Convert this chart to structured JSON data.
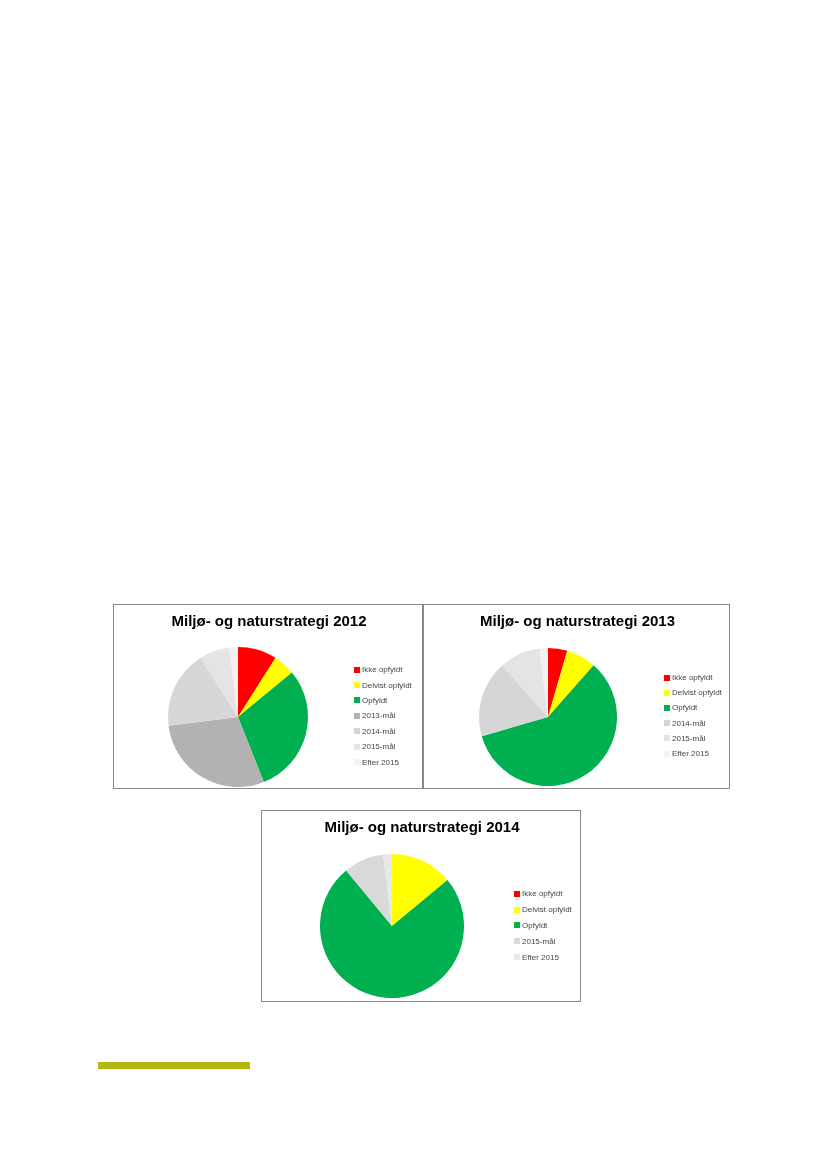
{
  "chart_data": [
    {
      "type": "pie",
      "title": "Miljø- og naturstrategi 2012",
      "categories": [
        "Ikke opfyldt",
        "Delvist opfyldt",
        "Opfyldt",
        "2013-mål",
        "2014-mål",
        "2015-mål",
        "Efter 2015"
      ],
      "values": [
        9,
        5,
        30,
        29,
        18,
        7,
        2
      ],
      "colors": [
        "#ff0000",
        "#ffff00",
        "#00b050",
        "#b2b2b2",
        "#d6d6d6",
        "#e4e4e4",
        "#f2f2f2"
      ],
      "legend": "right"
    },
    {
      "type": "pie",
      "title": "Miljø- og naturstrategi 2013",
      "categories": [
        "Ikke opfyldt",
        "Delvist opfyldt",
        "Opfyldt",
        "2014-mål",
        "2015-mål",
        "Efter 2015"
      ],
      "values": [
        4.5,
        7,
        59,
        18,
        9.5,
        2
      ],
      "colors": [
        "#ff0000",
        "#ffff00",
        "#00b050",
        "#d6d6d6",
        "#e4e4e4",
        "#f2f2f2"
      ],
      "legend": "right"
    },
    {
      "type": "pie",
      "title": "Miljø- og naturstrategi 2014",
      "categories": [
        "Ikke opfyldt",
        "Delvist opfyldt",
        "Opfyldt",
        "2015-mål",
        "Efter 2015"
      ],
      "values": [
        0,
        14,
        75,
        9,
        2
      ],
      "colors": [
        "#ff0000",
        "#ffff00",
        "#00b050",
        "#d9d9d9",
        "#e8e8e8"
      ],
      "legend": "right"
    }
  ]
}
